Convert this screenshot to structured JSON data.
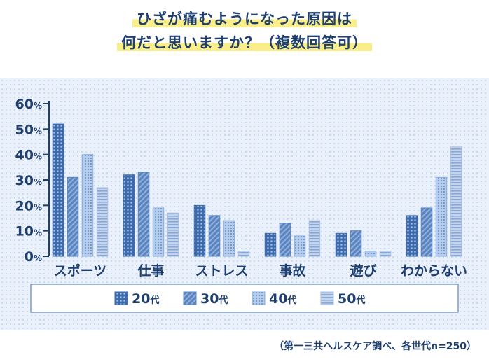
{
  "title_lines": [
    "ひざが痛むようになった原因は",
    "何だと思いますか？（複数回答可）"
  ],
  "source_note": "（第一三共ヘルスケア調べ、各世代n=250）",
  "colors": {
    "text": "#1f3f6e",
    "s20": "#3c6aab",
    "s30": "#5b84bf",
    "s40": "#8db0de",
    "s50": "#a9c0e0"
  },
  "chart_data": {
    "type": "bar",
    "categories": [
      "スポーツ",
      "仕事",
      "ストレス",
      "事故",
      "遊び",
      "わからない"
    ],
    "series": [
      {
        "name": "20代",
        "values": [
          52,
          32,
          20,
          9,
          9,
          16
        ]
      },
      {
        "name": "30代",
        "values": [
          31,
          33,
          16,
          13,
          10,
          19
        ]
      },
      {
        "name": "40代",
        "values": [
          40,
          19,
          14,
          8,
          2,
          31
        ]
      },
      {
        "name": "50代",
        "values": [
          27,
          17,
          2,
          14,
          2,
          43
        ]
      }
    ],
    "ylim": [
      0,
      60
    ],
    "yticks": [
      {
        "value": 0,
        "num": "0",
        "unit": "%"
      },
      {
        "value": 10,
        "num": "10",
        "unit": "%"
      },
      {
        "value": 20,
        "num": "20",
        "unit": "%"
      },
      {
        "value": 30,
        "num": "30",
        "unit": "%"
      },
      {
        "value": 40,
        "num": "40",
        "unit": "%"
      },
      {
        "value": 50,
        "num": "50",
        "unit": "%"
      },
      {
        "value": 60,
        "num": "60",
        "unit": "%"
      }
    ],
    "legend": [
      {
        "num": "20",
        "suffix": "代"
      },
      {
        "num": "30",
        "suffix": "代"
      },
      {
        "num": "40",
        "suffix": "代"
      },
      {
        "num": "50",
        "suffix": "代"
      }
    ],
    "legend_position": "bottom"
  }
}
